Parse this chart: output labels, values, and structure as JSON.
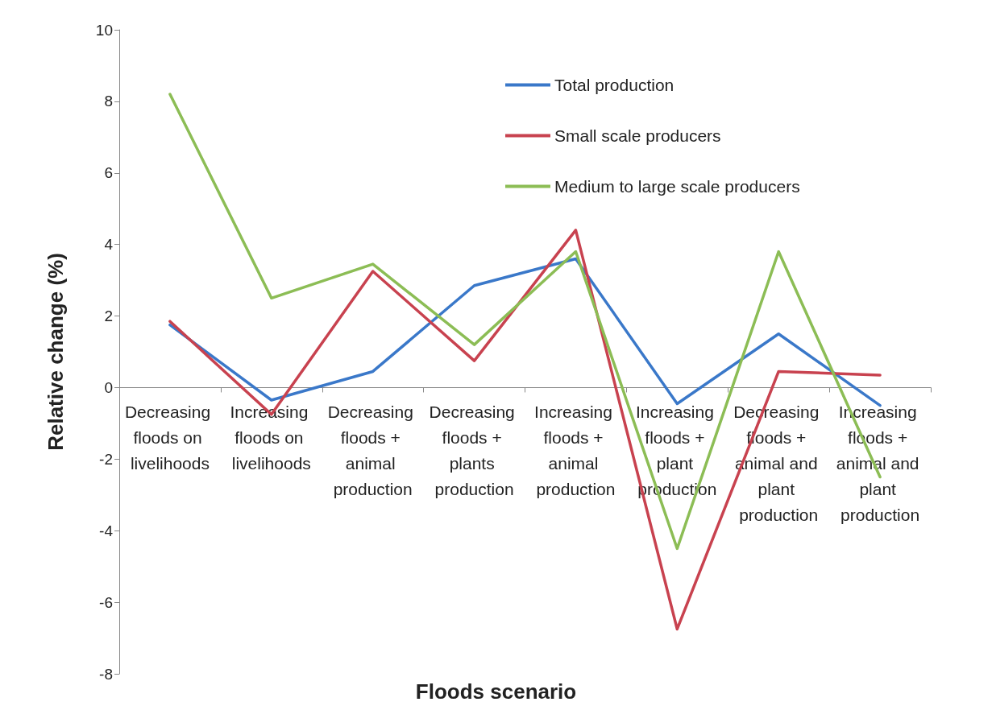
{
  "chart_data": {
    "type": "line",
    "xlabel": "Floods scenario",
    "ylabel": "Relative change (%)",
    "categories": [
      "Decreasing floods on livelihoods",
      "Increasing floods on livelihoods",
      "Decreasing floods + animal production",
      "Decreasing floods + plants production",
      "Increasing floods + animal production",
      "Increasing floods + plant production",
      "Decreasing floods + animal and plant production",
      "Increasing floods + animal and plant production"
    ],
    "series": [
      {
        "name": "Total production",
        "color": "#3a78c9",
        "values": [
          1.75,
          -0.35,
          0.45,
          2.85,
          3.6,
          -0.45,
          1.5,
          -0.5
        ]
      },
      {
        "name": "Small scale producers",
        "color": "#c8424f",
        "values": [
          1.85,
          -0.75,
          3.25,
          0.75,
          4.4,
          -6.75,
          0.45,
          0.35
        ]
      },
      {
        "name": "Medium to large scale producers",
        "color": "#8cbd55",
        "values": [
          8.2,
          2.5,
          3.45,
          1.2,
          3.8,
          -4.5,
          3.8,
          -2.5
        ]
      }
    ],
    "ylim": [
      -8,
      10
    ],
    "yticks": [
      -8,
      -6,
      -4,
      -2,
      0,
      2,
      4,
      6,
      8,
      10
    ],
    "grid": false,
    "legend": "top right",
    "marker": "none",
    "line_style": "solid"
  }
}
